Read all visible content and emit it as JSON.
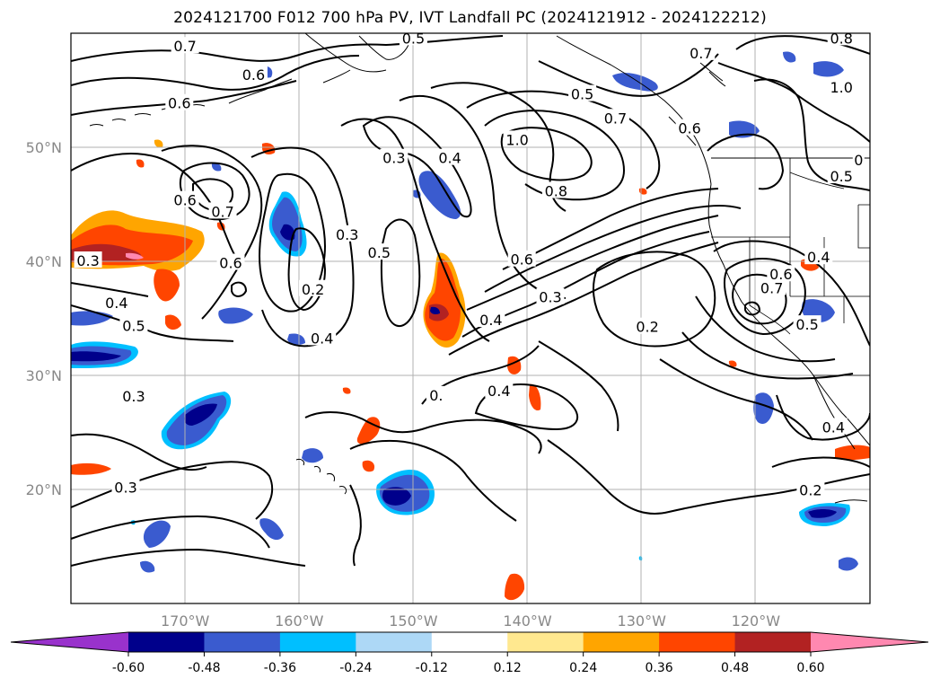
{
  "title": "2024121700 F012 700 hPa PV, IVT Landfall PC (2024121912 - 2024122212)",
  "map": {
    "lon_range": [
      -180,
      -110
    ],
    "lat_range": [
      10,
      60
    ],
    "lat_labels": [
      {
        "lat": 50,
        "text": "50°N"
      },
      {
        "lat": 40,
        "text": "40°N"
      },
      {
        "lat": 30,
        "text": "30°N"
      },
      {
        "lat": 20,
        "text": "20°N"
      }
    ],
    "lon_labels": [
      {
        "lon": -170,
        "text": "170°W"
      },
      {
        "lon": -160,
        "text": "160°W"
      },
      {
        "lon": -150,
        "text": "150°W"
      },
      {
        "lon": -140,
        "text": "140°W"
      },
      {
        "lon": -130,
        "text": "130°W"
      },
      {
        "lon": -120,
        "text": "120°W"
      }
    ],
    "contour_labels": [
      {
        "text": "0.7",
        "lon": -170,
        "lat": 58.8
      },
      {
        "text": "0.5",
        "lon": -150,
        "lat": 59.5
      },
      {
        "text": "0.6",
        "lon": -164,
        "lat": 56.3
      },
      {
        "text": "0.6",
        "lon": -170.5,
        "lat": 53.8
      },
      {
        "text": "0.6",
        "lon": -170,
        "lat": 45.3
      },
      {
        "text": "0.7",
        "lon": -166.7,
        "lat": 44.3
      },
      {
        "text": "0.6",
        "lon": -166,
        "lat": 39.8
      },
      {
        "text": "0.3",
        "lon": -178.5,
        "lat": 40
      },
      {
        "text": "0.4",
        "lon": -176,
        "lat": 36.3
      },
      {
        "text": "0.5",
        "lon": -174.5,
        "lat": 34.3
      },
      {
        "text": "0.2",
        "lon": -158.8,
        "lat": 37.5
      },
      {
        "text": "0.3",
        "lon": -155.8,
        "lat": 42.3
      },
      {
        "text": "0.5",
        "lon": -153,
        "lat": 40.7
      },
      {
        "text": "0.4",
        "lon": -158,
        "lat": 33.2
      },
      {
        "text": "0.3",
        "lon": -151.7,
        "lat": 49
      },
      {
        "text": "0.4",
        "lon": -146.8,
        "lat": 49
      },
      {
        "text": "1.0",
        "lon": -140.9,
        "lat": 50.6
      },
      {
        "text": "0.8",
        "lon": -137.5,
        "lat": 46.1
      },
      {
        "text": "0.5",
        "lon": -135.2,
        "lat": 54.6
      },
      {
        "text": "0.7",
        "lon": -132.3,
        "lat": 52.5
      },
      {
        "text": "0.6",
        "lon": -140.5,
        "lat": 40.1
      },
      {
        "text": "0.3",
        "lon": -138,
        "lat": 36.8
      },
      {
        "text": "0.4",
        "lon": -143.2,
        "lat": 34.8
      },
      {
        "text": "0.4",
        "lon": -142.5,
        "lat": 28.6
      },
      {
        "text": "0.2",
        "lon": -129.5,
        "lat": 34.2
      },
      {
        "text": "0.6",
        "lon": -125.8,
        "lat": 51.6
      },
      {
        "text": "1.0",
        "lon": -112.5,
        "lat": 55.2
      },
      {
        "text": "0.5",
        "lon": -112.5,
        "lat": 47.4
      },
      {
        "text": "0.7",
        "lon": -124.8,
        "lat": 58.2
      },
      {
        "text": "0.7",
        "lon": -118.6,
        "lat": 37.6
      },
      {
        "text": "0.6",
        "lon": -117.8,
        "lat": 38.8
      },
      {
        "text": "0.4",
        "lon": -114.5,
        "lat": 40.3
      },
      {
        "text": "0.5",
        "lon": -115.5,
        "lat": 34.4
      },
      {
        "text": "0.4",
        "lon": -113.2,
        "lat": 25.4
      },
      {
        "text": "0.2",
        "lon": -115.2,
        "lat": 19.9
      },
      {
        "text": "0.3",
        "lon": -175.2,
        "lat": 20.1
      },
      {
        "text": "0.3",
        "lon": -174.5,
        "lat": 28.1
      },
      {
        "text": "0.8",
        "lon": -112.5,
        "lat": 59.5
      },
      {
        "text": "0",
        "lon": -111,
        "lat": 48.8
      },
      {
        "text": "0.",
        "lon": -148,
        "lat": 28.2
      }
    ]
  },
  "colorbar": {
    "ticks": [
      "-0.60",
      "-0.48",
      "-0.36",
      "-0.24",
      "-0.12",
      "0.12",
      "0.24",
      "0.36",
      "0.48",
      "0.60"
    ],
    "colors": {
      "under": "#9932cc",
      "bins": [
        "#00008b",
        "#3a5bcf",
        "#00bfff",
        "#add8f6",
        "#ffffff",
        "#ffe88f",
        "#ffa500",
        "#ff4500",
        "#b22222"
      ],
      "over": "#ff88b0"
    }
  },
  "legend_colors": {
    "contour": "#000000",
    "grid": "#b0b0b0",
    "coast": "#000000",
    "axis_label": "#888888"
  }
}
